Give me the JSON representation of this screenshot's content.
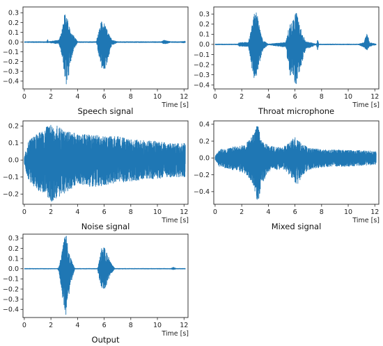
{
  "colors": {
    "series": "#1f77b4",
    "axis": "#222222"
  },
  "chart_data": [
    {
      "type": "line",
      "title": "Speech signal",
      "xlabel": "Time [s]",
      "xlim": [
        -0.1,
        12.3
      ],
      "ylim": [
        -0.48,
        0.36
      ],
      "xticks": [
        0,
        2,
        4,
        6,
        8,
        10,
        12
      ],
      "yticks": [
        -0.4,
        -0.3,
        -0.2,
        -0.1,
        0.0,
        0.1,
        0.2,
        0.3
      ],
      "ytick_labels": [
        "−0.4",
        "−0.3",
        "−0.2",
        "−0.1",
        "0.0",
        "0.1",
        "0.2",
        "0.3"
      ],
      "grid": false,
      "series": [
        {
          "x": [
            0,
            1.7,
            1.75,
            1.8,
            2.6,
            2.8,
            3.0,
            3.15,
            3.3,
            3.5,
            3.7,
            4.0,
            5.4,
            5.6,
            5.8,
            6.0,
            6.2,
            6.4,
            6.6,
            7.0,
            10.3,
            10.5,
            11.0,
            11.7,
            12.1
          ],
          "upper": [
            0.005,
            0.005,
            0.04,
            0.005,
            0.02,
            0.1,
            0.27,
            0.32,
            0.2,
            0.1,
            0.07,
            0.005,
            0.005,
            0.12,
            0.23,
            0.2,
            0.13,
            0.07,
            0.02,
            0.005,
            0.005,
            0.02,
            0.005,
            0.005,
            0.01
          ],
          "lower": [
            -0.005,
            -0.005,
            -0.01,
            -0.005,
            -0.02,
            -0.12,
            -0.32,
            -0.44,
            -0.38,
            -0.2,
            -0.08,
            -0.005,
            -0.005,
            -0.14,
            -0.26,
            -0.29,
            -0.23,
            -0.12,
            -0.03,
            -0.005,
            -0.005,
            -0.02,
            -0.005,
            -0.005,
            -0.01
          ]
        }
      ]
    },
    {
      "type": "line",
      "title": "Throat microphone",
      "xlabel": "Time [s]",
      "xlim": [
        -0.1,
        12.3
      ],
      "ylim": [
        -0.44,
        0.37
      ],
      "xticks": [
        0,
        2,
        4,
        6,
        8,
        10,
        12
      ],
      "yticks": [
        -0.4,
        -0.3,
        -0.2,
        -0.1,
        0.0,
        0.1,
        0.2,
        0.3
      ],
      "ytick_labels": [
        "−0.4",
        "−0.3",
        "−0.2",
        "−0.1",
        "0.0",
        "0.1",
        "0.2",
        "0.3"
      ],
      "grid": false,
      "series": [
        {
          "x": [
            0,
            1.7,
            1.8,
            2.5,
            2.7,
            2.9,
            3.1,
            3.3,
            3.6,
            4.0,
            5.3,
            5.6,
            5.9,
            6.1,
            6.4,
            6.8,
            7.6,
            7.7,
            7.8,
            10.8,
            11.2,
            11.4,
            11.6,
            12.1
          ],
          "upper": [
            0.004,
            0.004,
            0.02,
            0.02,
            0.15,
            0.3,
            0.34,
            0.2,
            0.04,
            0.004,
            0.02,
            0.2,
            0.26,
            0.33,
            0.17,
            0.03,
            0.004,
            0.05,
            0.004,
            0.004,
            0.02,
            0.14,
            0.02,
            0.004
          ],
          "lower": [
            -0.004,
            -0.004,
            -0.02,
            -0.02,
            -0.2,
            -0.33,
            -0.36,
            -0.2,
            -0.05,
            -0.004,
            -0.03,
            -0.3,
            -0.36,
            -0.4,
            -0.24,
            -0.05,
            -0.004,
            -0.06,
            -0.004,
            -0.004,
            -0.03,
            -0.06,
            -0.02,
            -0.004
          ]
        }
      ]
    },
    {
      "type": "line",
      "title": "Noise signal",
      "xlabel": "Time [s]",
      "xlim": [
        -0.1,
        12.3
      ],
      "ylim": [
        -0.26,
        0.23
      ],
      "xticks": [
        0,
        2,
        4,
        6,
        8,
        10,
        12
      ],
      "yticks": [
        -0.2,
        -0.1,
        0.0,
        0.1,
        0.2
      ],
      "ytick_labels": [
        "−0.2",
        "−0.1",
        "0.0",
        "0.1",
        "0.2"
      ],
      "grid": false,
      "series": [
        {
          "x": [
            0,
            0.3,
            1.0,
            1.6,
            2.0,
            2.5,
            3.0,
            3.5,
            4.0,
            5.0,
            6.0,
            7.0,
            8.0,
            9.0,
            10.0,
            11.0,
            12.1
          ],
          "upper": [
            0.02,
            0.11,
            0.16,
            0.19,
            0.21,
            0.2,
            0.17,
            0.17,
            0.15,
            0.15,
            0.14,
            0.14,
            0.12,
            0.12,
            0.11,
            0.1,
            0.1
          ],
          "lower": [
            -0.02,
            -0.12,
            -0.18,
            -0.2,
            -0.25,
            -0.22,
            -0.2,
            -0.17,
            -0.14,
            -0.16,
            -0.15,
            -0.13,
            -0.13,
            -0.11,
            -0.11,
            -0.1,
            -0.1
          ]
        }
      ]
    },
    {
      "type": "line",
      "title": "Mixed signal",
      "xlabel": "Time [s]",
      "xlim": [
        -0.1,
        12.3
      ],
      "ylim": [
        -0.55,
        0.44
      ],
      "xticks": [
        0,
        2,
        4,
        6,
        8,
        10,
        12
      ],
      "yticks": [
        -0.4,
        -0.2,
        0.0,
        0.2,
        0.4
      ],
      "ytick_labels": [
        "−0.4",
        "−0.2",
        "0.0",
        "0.2",
        "0.4"
      ],
      "grid": false,
      "series": [
        {
          "x": [
            0,
            0.3,
            1.0,
            1.6,
            2.2,
            2.8,
            3.0,
            3.2,
            3.5,
            4.0,
            5.0,
            5.6,
            6.0,
            6.2,
            6.6,
            7.0,
            8.0,
            9.0,
            10.0,
            11.0,
            12.1
          ],
          "upper": [
            0.02,
            0.1,
            0.12,
            0.14,
            0.15,
            0.26,
            0.36,
            0.4,
            0.2,
            0.15,
            0.12,
            0.18,
            0.26,
            0.22,
            0.16,
            0.12,
            0.1,
            0.1,
            0.09,
            0.09,
            0.08
          ],
          "lower": [
            -0.02,
            -0.1,
            -0.13,
            -0.15,
            -0.18,
            -0.3,
            -0.4,
            -0.53,
            -0.35,
            -0.16,
            -0.13,
            -0.2,
            -0.29,
            -0.33,
            -0.2,
            -0.14,
            -0.11,
            -0.1,
            -0.1,
            -0.09,
            -0.08
          ]
        }
      ]
    },
    {
      "type": "line",
      "title": "Output",
      "xlabel": "Time [s]",
      "xlim": [
        -0.1,
        12.3
      ],
      "ylim": [
        -0.48,
        0.34
      ],
      "xticks": [
        0,
        2,
        4,
        6,
        8,
        10,
        12
      ],
      "yticks": [
        -0.4,
        -0.3,
        -0.2,
        -0.1,
        0.0,
        0.1,
        0.2,
        0.3
      ],
      "ytick_labels": [
        "−0.4",
        "−0.3",
        "−0.2",
        "−0.1",
        "0.0",
        "0.1",
        "0.2",
        "0.3"
      ],
      "grid": false,
      "series": [
        {
          "x": [
            0,
            2.5,
            2.6,
            2.8,
            3.0,
            3.15,
            3.3,
            3.5,
            3.8,
            5.5,
            5.6,
            5.8,
            6.0,
            6.2,
            6.5,
            6.8,
            11.0,
            11.2,
            11.4,
            12.1
          ],
          "upper": [
            0.003,
            0.003,
            0.02,
            0.14,
            0.3,
            0.33,
            0.2,
            0.1,
            0.003,
            0.003,
            0.06,
            0.2,
            0.22,
            0.16,
            0.06,
            0.003,
            0.003,
            0.015,
            0.003,
            0.003
          ],
          "lower": [
            -0.003,
            -0.003,
            -0.03,
            -0.22,
            -0.4,
            -0.47,
            -0.3,
            -0.14,
            -0.003,
            -0.003,
            -0.1,
            -0.18,
            -0.22,
            -0.15,
            -0.05,
            -0.003,
            -0.003,
            -0.01,
            -0.003,
            -0.003
          ]
        }
      ]
    }
  ]
}
